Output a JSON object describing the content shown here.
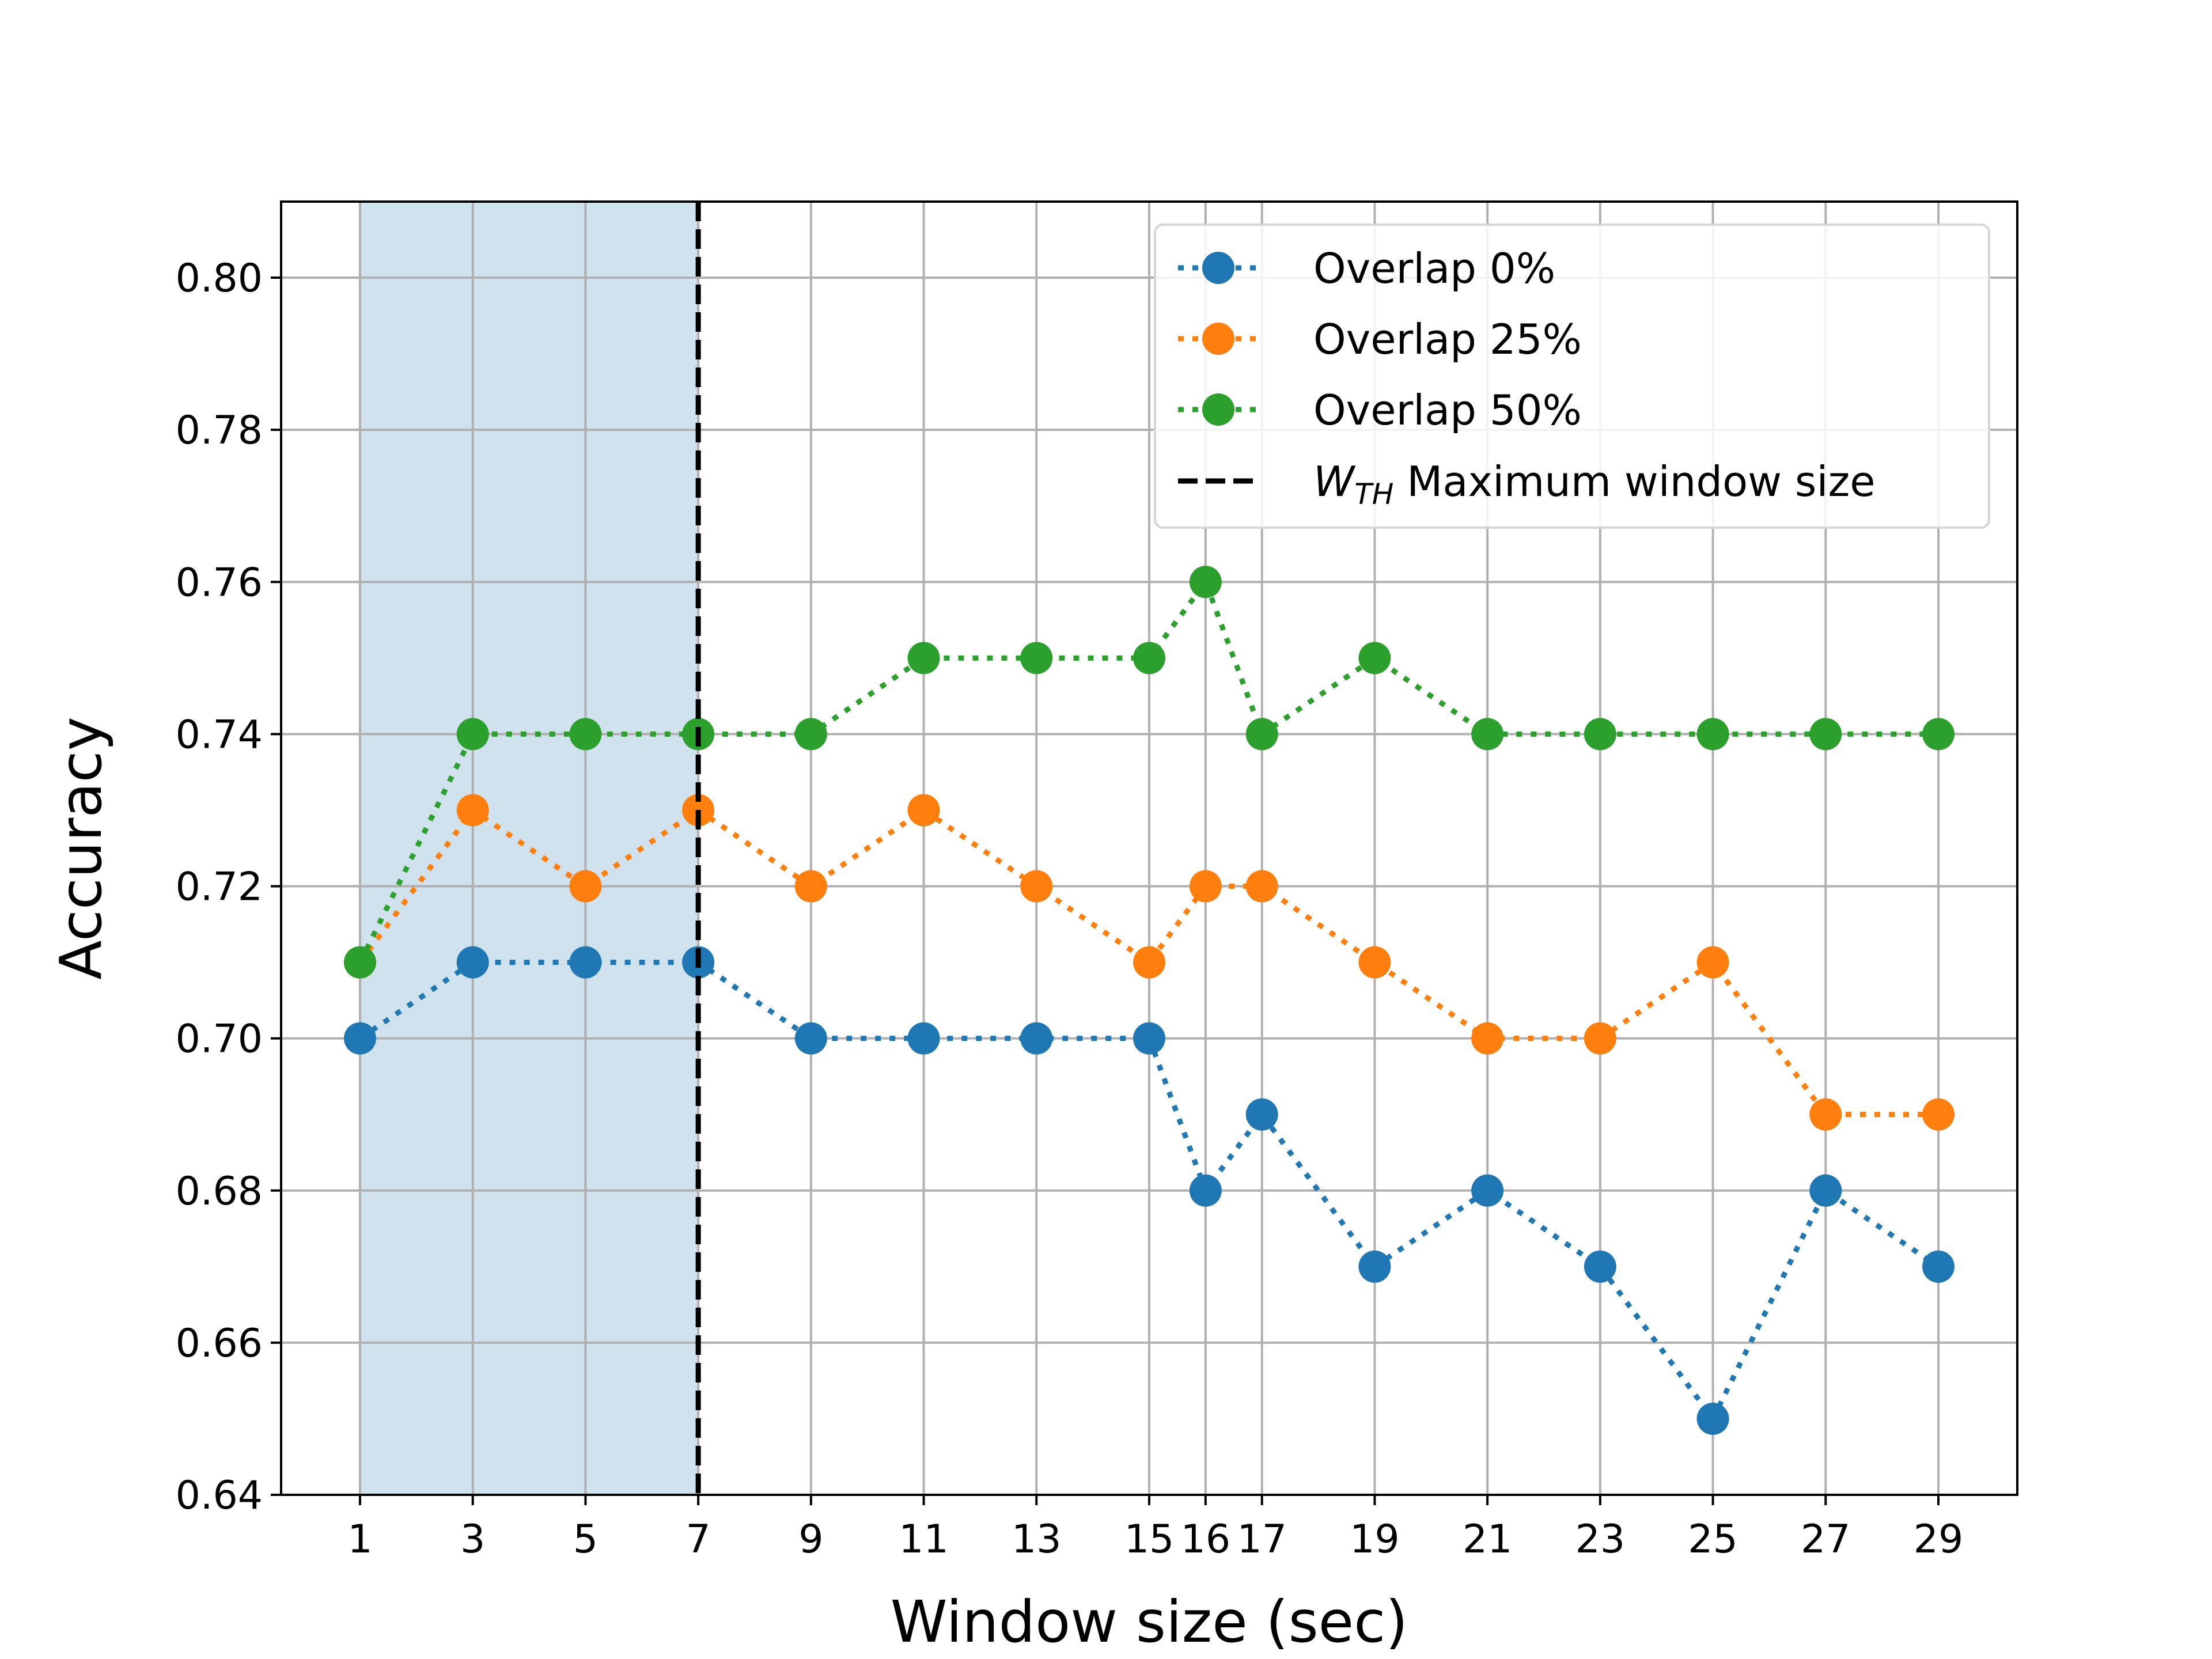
{
  "chart_data": {
    "type": "line",
    "title": "",
    "xlabel": "Window size (sec)",
    "ylabel": "Accuracy",
    "x": [
      1,
      3,
      5,
      7,
      9,
      11,
      13,
      15,
      16,
      17,
      19,
      21,
      23,
      25,
      27,
      29
    ],
    "x_tick_labels": [
      "1",
      "3",
      "5",
      "7",
      "9",
      "11",
      "13",
      "15",
      "16",
      "17",
      "19",
      "21",
      "23",
      "25",
      "27",
      "29"
    ],
    "y_tick_labels": [
      "0.64",
      "0.66",
      "0.68",
      "0.70",
      "0.72",
      "0.74",
      "0.76",
      "0.78",
      "0.80"
    ],
    "y_ticks": [
      0.64,
      0.66,
      0.68,
      0.7,
      0.72,
      0.74,
      0.76,
      0.78,
      0.8
    ],
    "xlim": [
      -0.4,
      30.4
    ],
    "ylim": [
      0.64,
      0.81
    ],
    "grid": true,
    "legend_position": "top-right",
    "series": [
      {
        "name": "Overlap 0%",
        "color": "#1f77b4",
        "line_style": "dotted",
        "marker": "circle",
        "values": [
          0.7,
          0.71,
          0.71,
          0.71,
          0.7,
          0.7,
          0.7,
          0.7,
          0.68,
          0.69,
          0.67,
          0.68,
          0.67,
          0.65,
          0.68,
          0.67
        ]
      },
      {
        "name": "Overlap 25%",
        "color": "#ff7f0e",
        "line_style": "dotted",
        "marker": "circle",
        "values": [
          0.71,
          0.73,
          0.72,
          0.73,
          0.72,
          0.73,
          0.72,
          0.71,
          0.72,
          0.72,
          0.71,
          0.7,
          0.7,
          0.71,
          0.69,
          0.69
        ]
      },
      {
        "name": "Overlap 50%",
        "color": "#2ca02c",
        "line_style": "dotted",
        "marker": "circle",
        "values": [
          0.71,
          0.74,
          0.74,
          0.74,
          0.74,
          0.75,
          0.75,
          0.75,
          0.76,
          0.74,
          0.75,
          0.74,
          0.74,
          0.74,
          0.74,
          0.74
        ]
      }
    ],
    "threshold": {
      "x": 7,
      "color": "#000000",
      "line_style": "dashed",
      "label_symbol": "W",
      "label_subscript": "TH",
      "label_text": "Maximum window size"
    },
    "shaded_region": {
      "x_start": 1,
      "x_end": 7,
      "color": "#d1e2ef"
    }
  }
}
